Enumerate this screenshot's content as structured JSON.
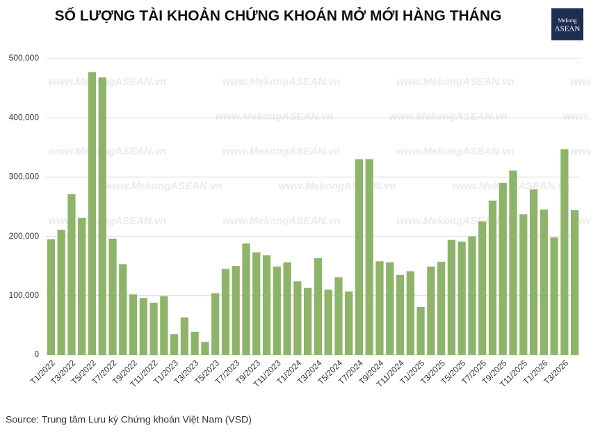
{
  "chart_data": {
    "type": "bar",
    "title": "SỐ LƯỢNG TÀI KHOẢN CHỨNG KHOÁN MỞ MỚI HÀNG THÁNG",
    "logo": [
      "Mekong",
      "ASEAN"
    ],
    "watermark": "www.MekongASEAN.vn",
    "source": "Source: Trung tâm Lưu ký Chứng khoán Việt Nam (VSD)",
    "color": "#8db468",
    "grid": true,
    "categories": [
      "T1/2022",
      null,
      "T3/2022",
      null,
      "T5/2022",
      null,
      "T7/2022",
      null,
      "T9/2022",
      null,
      "T11/2022",
      null,
      "T1/2023",
      null,
      "T3/2023",
      null,
      "T5/2023",
      null,
      "T7/2023",
      null,
      "T9/2023",
      null,
      "T11/2023",
      null,
      "T1/2024",
      null,
      "T3/2024",
      null,
      "T5/2024",
      null,
      "T7/2024",
      null,
      "T9/2024",
      null,
      "T11/2024",
      null,
      "T1/2025",
      null,
      "T3/2025",
      null,
      "T5/2025",
      null,
      "T7/2025",
      null,
      "T9/2025",
      null,
      "T11/2025",
      null,
      "T1/2026",
      null,
      "T3/2026",
      null
    ],
    "values": [
      195000,
      211000,
      271000,
      231000,
      477000,
      468000,
      196000,
      153000,
      102000,
      96000,
      88000,
      99000,
      35000,
      63000,
      39000,
      22000,
      104000,
      145000,
      150000,
      188000,
      173000,
      168000,
      149000,
      156000,
      124000,
      113000,
      163000,
      110000,
      131000,
      107000,
      330000,
      330000,
      158000,
      156000,
      135000,
      141000,
      81000,
      149000,
      157000,
      194000,
      191000,
      200000,
      225000,
      260000,
      290000,
      311000,
      237000,
      279000,
      245000,
      198000,
      347000,
      244000
    ],
    "ylim": [
      0,
      500000
    ],
    "yticks": [
      0,
      {
        "value": 100000,
        "label": "100,000"
      },
      {
        "value": 200000,
        "label": "200,000"
      },
      {
        "value": 300000,
        "label": "300,000"
      },
      {
        "value": 400000,
        "label": "400,000"
      },
      {
        "value": 500000,
        "label": "500,000"
      }
    ]
  }
}
